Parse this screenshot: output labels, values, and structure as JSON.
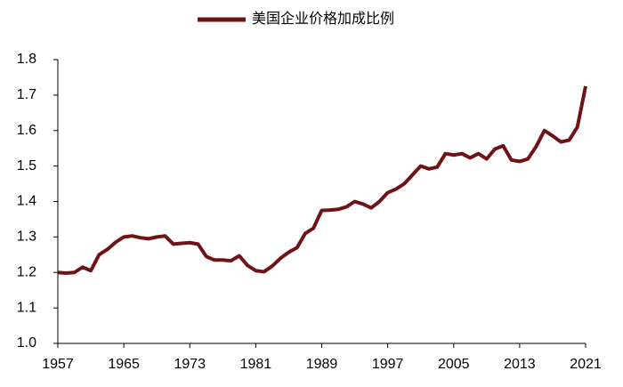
{
  "chart_data": {
    "type": "line",
    "x": [
      1957,
      1958,
      1959,
      1960,
      1961,
      1962,
      1963,
      1964,
      1965,
      1966,
      1967,
      1968,
      1969,
      1970,
      1971,
      1972,
      1973,
      1974,
      1975,
      1976,
      1977,
      1978,
      1979,
      1980,
      1981,
      1982,
      1983,
      1984,
      1985,
      1986,
      1987,
      1988,
      1989,
      1990,
      1991,
      1992,
      1993,
      1994,
      1995,
      1996,
      1997,
      1998,
      1999,
      2000,
      2001,
      2002,
      2003,
      2004,
      2005,
      2006,
      2007,
      2008,
      2009,
      2010,
      2011,
      2012,
      2013,
      2014,
      2015,
      2016,
      2017,
      2018,
      2019,
      2020,
      2021
    ],
    "series": [
      {
        "name": "美国企业价格加成比例",
        "color": "#6e1416",
        "values": [
          1.2,
          1.198,
          1.2,
          1.215,
          1.205,
          1.25,
          1.265,
          1.285,
          1.3,
          1.303,
          1.298,
          1.295,
          1.3,
          1.303,
          1.28,
          1.282,
          1.284,
          1.28,
          1.245,
          1.235,
          1.235,
          1.233,
          1.247,
          1.22,
          1.205,
          1.202,
          1.218,
          1.24,
          1.257,
          1.27,
          1.31,
          1.325,
          1.375,
          1.376,
          1.378,
          1.385,
          1.4,
          1.393,
          1.382,
          1.4,
          1.425,
          1.435,
          1.45,
          1.475,
          1.5,
          1.492,
          1.497,
          1.535,
          1.531,
          1.535,
          1.523,
          1.535,
          1.52,
          1.548,
          1.557,
          1.517,
          1.513,
          1.52,
          1.555,
          1.6,
          1.585,
          1.568,
          1.573,
          1.61,
          1.725
        ]
      }
    ],
    "xlim": [
      1957,
      2021
    ],
    "xticks": [
      1957,
      1965,
      1973,
      1981,
      1989,
      1997,
      2005,
      2013,
      2021
    ],
    "ylim": [
      1.0,
      1.8
    ],
    "yticks": [
      {
        "value": 1,
        "label": "1.0"
      },
      1.1,
      1.2,
      1.3,
      1.4,
      1.5,
      1.6,
      1.7,
      1.8
    ],
    "grid": false,
    "legend": "top"
  }
}
